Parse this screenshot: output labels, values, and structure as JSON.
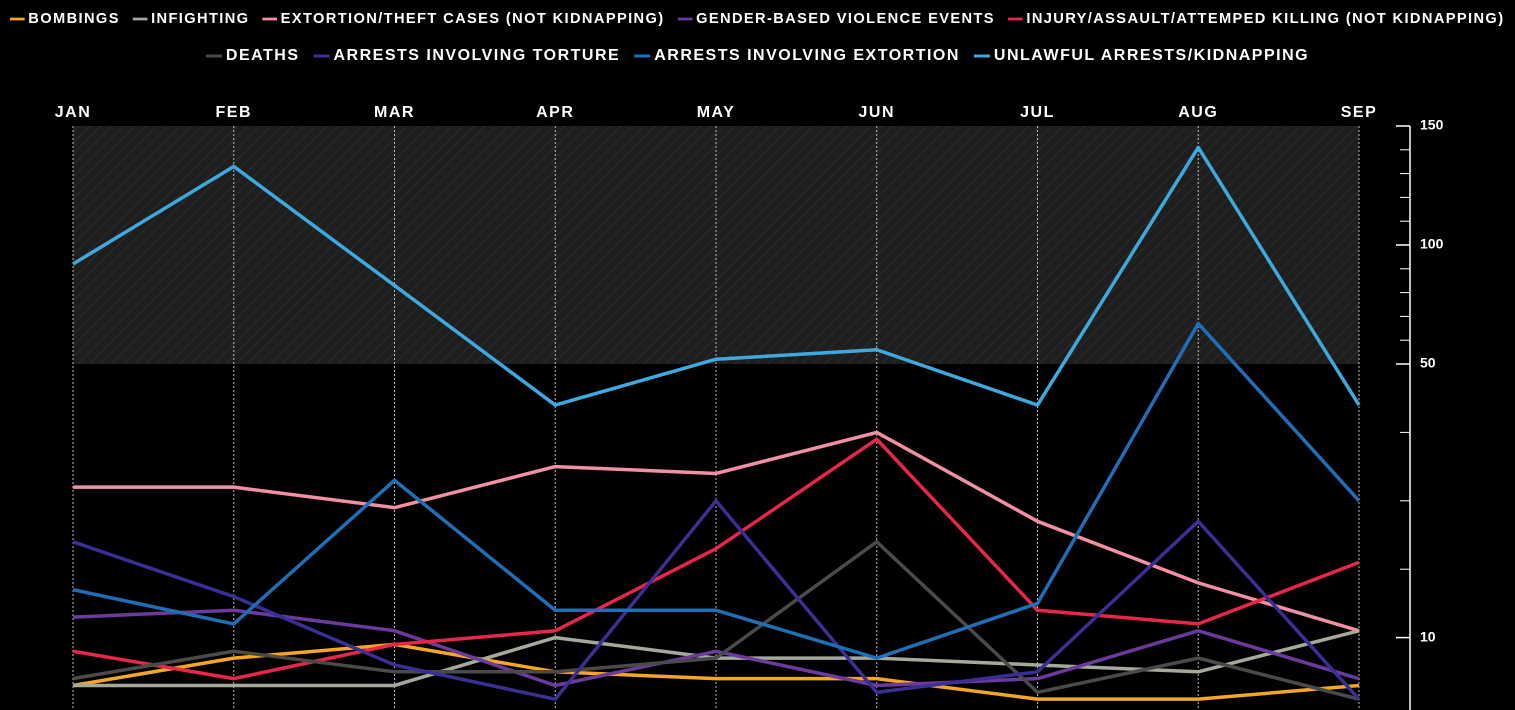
{
  "chart_data": {
    "type": "line",
    "categories": [
      "JAN",
      "FEB",
      "MAR",
      "APR",
      "MAY",
      "JUN",
      "JUL",
      "AUG",
      "SEP"
    ],
    "series": [
      {
        "name": "BOMBINGS",
        "color": "#f5a623",
        "values": [
          3,
          7,
          9,
          5,
          4,
          4,
          1,
          1,
          3
        ]
      },
      {
        "name": "INFIGHTING",
        "color": "#a3aa99",
        "values": [
          3,
          3,
          3,
          10,
          7,
          7,
          6,
          5,
          11
        ]
      },
      {
        "name": "EXTORTION/THEFT CASES (NOT KIDNAPPING)",
        "color": "#f28fa3",
        "values": [
          32,
          32,
          29,
          35,
          34,
          40,
          27,
          18,
          11
        ]
      },
      {
        "name": "GENDER-BASED VIOLENCE EVENTS",
        "color": "#6b3a9c",
        "values": [
          13,
          14,
          11,
          3,
          8,
          3,
          4,
          11,
          4
        ]
      },
      {
        "name": "INJURY/ASSAULT/ATTEMPED KILLING (NOT KIDNAPPING)",
        "color": "#e8254a",
        "values": [
          8,
          4,
          9,
          11,
          23,
          39,
          14,
          12,
          21
        ]
      },
      {
        "name": "DEATHS",
        "color": "#4a4a4a",
        "values": [
          4,
          8,
          5,
          5,
          7,
          24,
          2,
          7,
          1
        ]
      },
      {
        "name": "ARRESTS INVOLVING TORTURE",
        "color": "#3a2f94",
        "values": [
          24,
          16,
          6,
          1,
          30,
          2,
          5,
          27,
          1
        ]
      },
      {
        "name": "ARRESTS INVOLVING EXTORTION",
        "color": "#1f6fb8",
        "values": [
          17,
          12,
          33,
          14,
          14,
          7,
          15,
          67,
          30
        ]
      },
      {
        "name": "UNLAWFUL ARRESTS/KIDNAPPING",
        "color": "#3ea9de",
        "values": [
          92,
          133,
          83,
          44,
          52,
          56,
          44,
          141,
          44
        ]
      }
    ],
    "ylim": [
      0,
      150
    ],
    "y_segments": [
      [
        0,
        50
      ],
      [
        50,
        150
      ]
    ],
    "yticks": [
      10,
      50,
      100,
      150
    ],
    "minor_yticks": [
      20,
      30,
      40,
      60,
      70,
      80,
      90,
      110,
      120,
      130,
      140
    ],
    "shaded_range": [
      50,
      150
    ],
    "grid": true
  }
}
